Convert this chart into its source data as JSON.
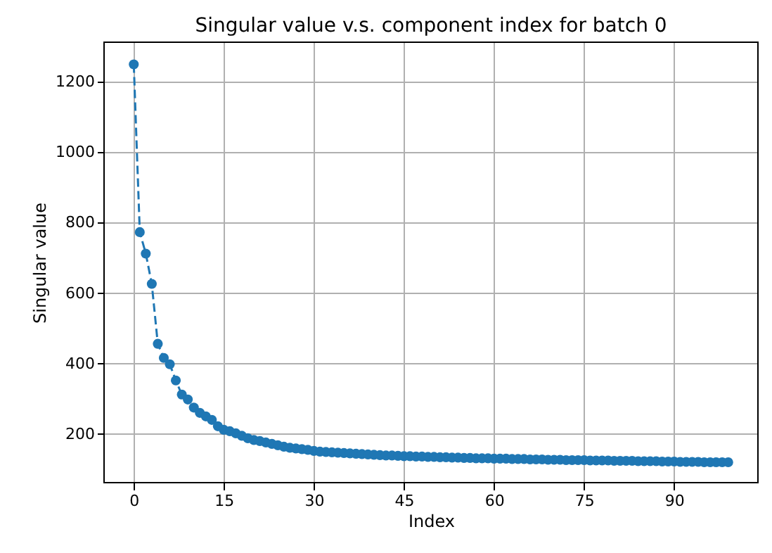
{
  "chart_data": {
    "type": "line",
    "title": "Singular value v.s. component index for batch 0",
    "xlabel": "Index",
    "ylabel": "Singular value",
    "x": [
      0,
      1,
      2,
      3,
      4,
      5,
      6,
      7,
      8,
      9,
      10,
      11,
      12,
      13,
      14,
      15,
      16,
      17,
      18,
      19,
      20,
      21,
      22,
      23,
      24,
      25,
      26,
      27,
      28,
      29,
      30,
      31,
      32,
      33,
      34,
      35,
      36,
      37,
      38,
      39,
      40,
      41,
      42,
      43,
      44,
      45,
      46,
      47,
      48,
      49,
      50,
      51,
      52,
      53,
      54,
      55,
      56,
      57,
      58,
      59,
      60,
      61,
      62,
      63,
      64,
      65,
      66,
      67,
      68,
      69,
      70,
      71,
      72,
      73,
      74,
      75,
      76,
      77,
      78,
      79,
      80,
      81,
      82,
      83,
      84,
      85,
      86,
      87,
      88,
      89,
      90,
      91,
      92,
      93,
      94,
      95,
      96,
      97,
      98,
      99
    ],
    "series": [
      {
        "color": "#1f77b4",
        "values": [
          1249,
          773,
          712,
          626,
          456,
          416,
          398,
          352,
          312,
          298,
          275,
          260,
          250,
          240,
          222,
          212,
          208,
          202,
          195,
          188,
          183,
          180,
          176,
          172,
          168,
          164,
          161,
          159,
          157,
          155,
          152,
          150,
          149,
          148,
          147,
          146,
          145,
          144,
          143,
          142,
          141,
          140,
          139,
          139,
          138,
          137,
          137,
          136,
          136,
          135,
          135,
          134,
          134,
          133,
          133,
          132,
          132,
          131,
          131,
          131,
          130,
          130,
          130,
          129,
          129,
          129,
          128,
          128,
          128,
          127,
          127,
          127,
          126,
          126,
          126,
          126,
          125,
          125,
          125,
          125,
          124,
          124,
          124,
          124,
          123,
          123,
          123,
          123,
          122,
          122,
          122,
          121,
          121,
          121,
          121,
          120,
          120,
          120,
          120,
          120
        ]
      }
    ],
    "xlim": [
      -4.95,
      103.95
    ],
    "ylim": [
      62,
      1312
    ],
    "xticks": [
      0,
      15,
      30,
      45,
      60,
      75,
      90
    ],
    "yticks": [
      200,
      400,
      600,
      800,
      1000,
      1200
    ],
    "grid": true,
    "marker": "circle",
    "line_style": "dashed"
  }
}
